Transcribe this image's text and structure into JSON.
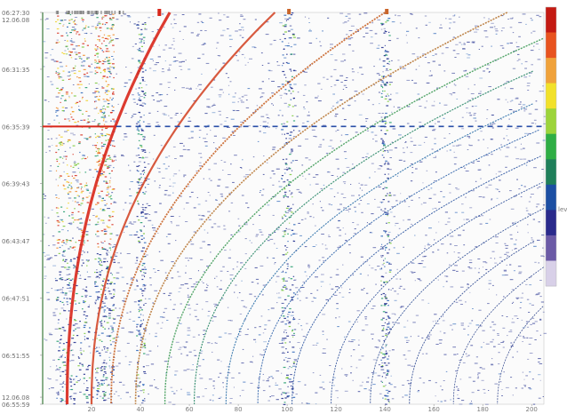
{
  "chart_data": {
    "type": "heatmap",
    "title": "",
    "xlabel": "",
    "ylabel": "",
    "x_ticks": [
      "20",
      "40",
      "60",
      "80",
      "100",
      "120",
      "140",
      "160",
      "180",
      "200"
    ],
    "x_tick_values": [
      20,
      40,
      60,
      80,
      100,
      120,
      140,
      160,
      180,
      200
    ],
    "x_range": [
      0,
      205
    ],
    "y_ticks": [
      {
        "label": "06:27:30",
        "pos": 0.0
      },
      {
        "label": "12.06.08",
        "pos": 0.018
      },
      {
        "label": "06:31:35",
        "pos": 0.145
      },
      {
        "label": "06:35:39",
        "pos": 0.291
      },
      {
        "label": "06:39:43",
        "pos": 0.437
      },
      {
        "label": "06:43:47",
        "pos": 0.583
      },
      {
        "label": "06:47:51",
        "pos": 0.729
      },
      {
        "label": "06:51:55",
        "pos": 0.875
      },
      {
        "label": "12.06.08",
        "pos": 0.982
      },
      {
        "label": "06:55:59",
        "pos": 1.0
      }
    ],
    "colorbar": {
      "colors": [
        "#c41a12",
        "#e8531f",
        "#f0a23a",
        "#f2e12a",
        "#9cd43a",
        "#2fae45",
        "#1f7f5a",
        "#1c4fa3",
        "#2a2a8c",
        "#6b5aa6",
        "#d8d0e8"
      ],
      "label": "lev"
    },
    "vertical_bands_x": [
      12,
      25,
      40,
      100,
      140
    ],
    "horizontal_marker": {
      "pos": 0.291
    },
    "color_scale": [
      "#1c2a8c",
      "#2a64b8",
      "#1f9b6a",
      "#79c83a",
      "#f0d22a",
      "#f08a2a",
      "#d52a1a"
    ]
  }
}
